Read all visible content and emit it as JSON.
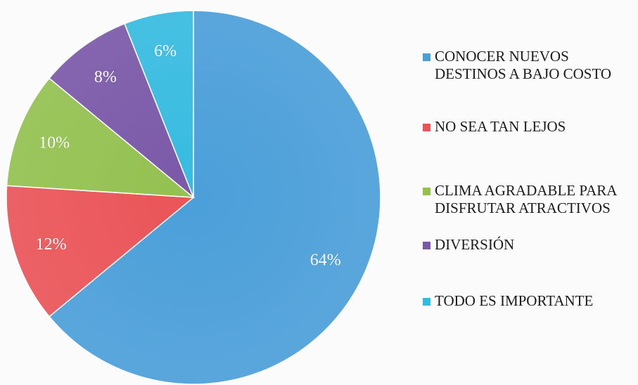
{
  "chart_data": {
    "type": "pie",
    "title": "",
    "legend_position": "right",
    "slices": [
      {
        "label": "CONOCER NUEVOS DESTINOS A BAJO COSTO",
        "value": 64,
        "value_label": "64%",
        "color": "#4b9fd9"
      },
      {
        "label": "NO SEA TAN LEJOS",
        "value": 12,
        "value_label": "12%",
        "color": "#ea5458"
      },
      {
        "label": "CLIMA AGRADABLE PARA DISFRUTAR ATRACTIVOS",
        "value": 10,
        "value_label": "10%",
        "color": "#93c150"
      },
      {
        "label": "DIVERSIÓN",
        "value": 8,
        "value_label": "8%",
        "color": "#7a58a8"
      },
      {
        "label": "TODO ES IMPORTANTE",
        "value": 6,
        "value_label": "6%",
        "color": "#36bbe0"
      }
    ]
  }
}
